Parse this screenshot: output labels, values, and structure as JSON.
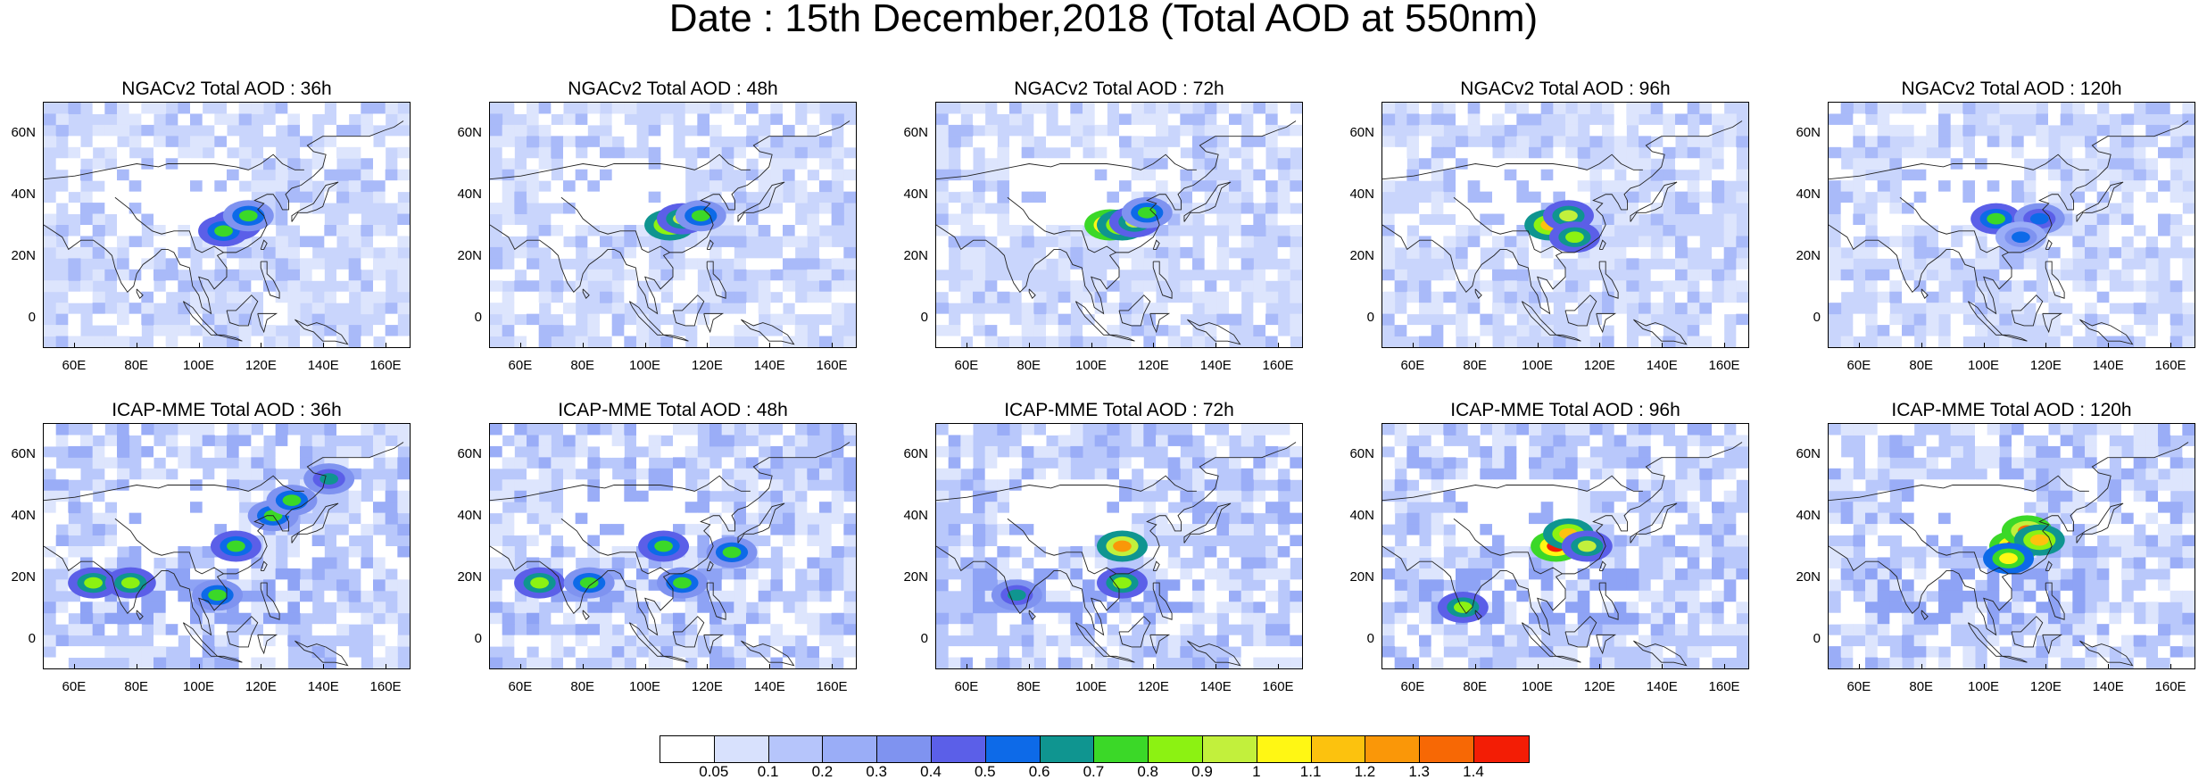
{
  "title": "Date : 15th December,2018 (Total AOD at 550nm)",
  "panels": [
    {
      "title": "NGACv2 Total AOD : 36h",
      "hotspots": [
        {
          "lon": 112,
          "lat": 30,
          "v": 0.8
        },
        {
          "lon": 108,
          "lat": 28,
          "v": 0.75
        },
        {
          "lon": 116,
          "lat": 33,
          "v": 0.7
        }
      ]
    },
    {
      "title": "NGACv2 Total AOD : 48h",
      "hotspots": [
        {
          "lon": 108,
          "lat": 30,
          "v": 1.2
        },
        {
          "lon": 112,
          "lat": 32,
          "v": 0.9
        },
        {
          "lon": 118,
          "lat": 33,
          "v": 0.7
        }
      ]
    },
    {
      "title": "NGACv2 Total AOD : 72h",
      "hotspots": [
        {
          "lon": 106,
          "lat": 30,
          "v": 1.4
        },
        {
          "lon": 110,
          "lat": 30,
          "v": 1.1
        },
        {
          "lon": 114,
          "lat": 31,
          "v": 0.9
        },
        {
          "lon": 118,
          "lat": 34,
          "v": 0.7
        }
      ]
    },
    {
      "title": "NGACv2 Total AOD : 96h",
      "hotspots": [
        {
          "lon": 104,
          "lat": 30,
          "v": 1.1
        },
        {
          "lon": 110,
          "lat": 33,
          "v": 0.9
        },
        {
          "lon": 112,
          "lat": 26,
          "v": 0.8
        }
      ]
    },
    {
      "title": "NGACv2 Total AOD : 120h",
      "hotspots": [
        {
          "lon": 104,
          "lat": 32,
          "v": 0.75
        },
        {
          "lon": 118,
          "lat": 32,
          "v": 0.55
        },
        {
          "lon": 112,
          "lat": 26,
          "v": 0.5
        }
      ]
    },
    {
      "title": "ICAP-MME Total AOD : 36h",
      "hotspots": [
        {
          "lon": 66,
          "lat": 18,
          "v": 0.85
        },
        {
          "lon": 78,
          "lat": 18,
          "v": 0.8
        },
        {
          "lon": 112,
          "lat": 30,
          "v": 0.75
        },
        {
          "lon": 124,
          "lat": 40,
          "v": 0.7
        },
        {
          "lon": 130,
          "lat": 45,
          "v": 0.7
        },
        {
          "lon": 142,
          "lat": 52,
          "v": 0.65
        },
        {
          "lon": 106,
          "lat": 14,
          "v": 0.7
        }
      ]
    },
    {
      "title": "ICAP-MME Total AOD : 48h",
      "hotspots": [
        {
          "lon": 66,
          "lat": 18,
          "v": 0.8
        },
        {
          "lon": 82,
          "lat": 18,
          "v": 0.7
        },
        {
          "lon": 106,
          "lat": 30,
          "v": 0.75
        },
        {
          "lon": 112,
          "lat": 18,
          "v": 0.7
        },
        {
          "lon": 128,
          "lat": 28,
          "v": 0.7
        }
      ]
    },
    {
      "title": "ICAP-MME Total AOD : 72h",
      "hotspots": [
        {
          "lon": 110,
          "lat": 30,
          "v": 1.25
        },
        {
          "lon": 110,
          "lat": 18,
          "v": 0.8
        },
        {
          "lon": 76,
          "lat": 14,
          "v": 0.6
        }
      ]
    },
    {
      "title": "ICAP-MME Total AOD : 96h",
      "hotspots": [
        {
          "lon": 106,
          "lat": 30,
          "v": 1.4
        },
        {
          "lon": 110,
          "lat": 34,
          "v": 1.15
        },
        {
          "lon": 116,
          "lat": 30,
          "v": 0.9
        },
        {
          "lon": 76,
          "lat": 10,
          "v": 0.8
        }
      ]
    },
    {
      "title": "ICAP-MME Total AOD : 120h",
      "hotspots": [
        {
          "lon": 110,
          "lat": 30,
          "v": 1.4
        },
        {
          "lon": 114,
          "lat": 35,
          "v": 1.3
        },
        {
          "lon": 118,
          "lat": 32,
          "v": 1.1
        },
        {
          "lon": 108,
          "lat": 26,
          "v": 1.0
        }
      ]
    }
  ],
  "axes": {
    "lon_ticks": [
      "60E",
      "80E",
      "100E",
      "120E",
      "140E",
      "160E"
    ],
    "lat_ticks": [
      "60N",
      "40N",
      "20N",
      "0"
    ],
    "lon_range": [
      50,
      168
    ],
    "lat_range": [
      -10,
      70
    ]
  },
  "colorbar": {
    "labels": [
      "0.05",
      "0.1",
      "0.2",
      "0.3",
      "0.4",
      "0.5",
      "0.6",
      "0.7",
      "0.8",
      "0.9",
      "1",
      "1.1",
      "1.2",
      "1.3",
      "1.4"
    ],
    "colors": [
      "#ffffff",
      "#d8e1fd",
      "#b6c5fb",
      "#9aadf7",
      "#7f93f0",
      "#5b5fe8",
      "#0d6ae8",
      "#0f9590",
      "#3bd828",
      "#8cf212",
      "#c2f03c",
      "#fff714",
      "#fcc20e",
      "#fa9708",
      "#f76805",
      "#f31d05"
    ]
  }
}
